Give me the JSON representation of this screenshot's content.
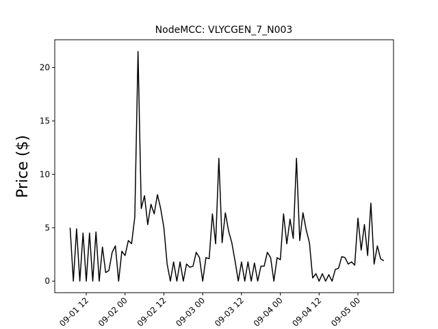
{
  "chart_data": {
    "type": "line",
    "title": "NodeMCC: VLYCGEN_7_N003",
    "y_label": "Price ($)",
    "color": "#000000",
    "grid": false,
    "x": [
      "09-01 07",
      "09-01 08",
      "09-01 09",
      "09-01 10",
      "09-01 11",
      "09-01 12",
      "09-01 13",
      "09-01 14",
      "09-01 15",
      "09-01 16",
      "09-01 17",
      "09-01 18",
      "09-01 19",
      "09-01 20",
      "09-01 21",
      "09-01 22",
      "09-01 23",
      "09-02 00",
      "09-02 01",
      "09-02 02",
      "09-02 03",
      "09-02 04",
      "09-02 05",
      "09-02 06",
      "09-02 07",
      "09-02 08",
      "09-02 09",
      "09-02 10",
      "09-02 11",
      "09-02 12",
      "09-02 13",
      "09-02 14",
      "09-02 15",
      "09-02 16",
      "09-02 17",
      "09-02 18",
      "09-02 19",
      "09-02 20",
      "09-02 21",
      "09-02 22",
      "09-02 23",
      "09-03 00",
      "09-03 01",
      "09-03 02",
      "09-03 03",
      "09-03 04",
      "09-03 05",
      "09-03 06",
      "09-03 07",
      "09-03 08",
      "09-03 09",
      "09-03 10",
      "09-03 11",
      "09-03 12",
      "09-03 13",
      "09-03 14",
      "09-03 15",
      "09-03 16",
      "09-03 17",
      "09-03 18",
      "09-03 19",
      "09-03 20",
      "09-03 21",
      "09-03 22",
      "09-03 23",
      "09-04 00",
      "09-04 01",
      "09-04 02",
      "09-04 03",
      "09-04 04",
      "09-04 05",
      "09-04 06",
      "09-04 07",
      "09-04 08",
      "09-04 09",
      "09-04 10",
      "09-04 11",
      "09-04 12",
      "09-04 13",
      "09-04 14",
      "09-04 15",
      "09-04 16",
      "09-04 17",
      "09-04 18",
      "09-04 19",
      "09-04 20",
      "09-04 21",
      "09-04 22",
      "09-04 23",
      "09-05 00",
      "09-05 01",
      "09-05 02",
      "09-05 03",
      "09-05 04",
      "09-05 05",
      "09-05 06",
      "09-05 07",
      "09-05 08"
    ],
    "values": [
      5.0,
      0,
      4.9,
      0,
      4.5,
      0,
      4.5,
      0,
      4.6,
      0,
      3.2,
      0.8,
      1.0,
      2.7,
      3.3,
      0,
      2.8,
      2.4,
      3.8,
      3.5,
      6.0,
      21.5,
      6.8,
      8.0,
      5.3,
      7.2,
      6.3,
      8.1,
      6.8,
      5.0,
      1.6,
      0,
      1.8,
      0,
      1.8,
      0,
      1.6,
      1.3,
      1.4,
      2.7,
      2.2,
      0,
      2.2,
      2.1,
      6.3,
      3.5,
      11.5,
      3.6,
      6.4,
      4.7,
      3.6,
      1.9,
      0,
      1.8,
      0,
      1.8,
      0,
      1.7,
      0,
      1.4,
      1.4,
      2.7,
      2.2,
      0,
      2.2,
      2.0,
      6.3,
      3.5,
      5.8,
      4.0,
      11.5,
      3.8,
      6.4,
      4.8,
      3.6,
      0.3,
      0.7,
      0,
      0.7,
      0,
      0.6,
      0,
      1.1,
      1.2,
      2.3,
      2.2,
      1.6,
      1.8,
      1.5,
      5.9,
      2.9,
      5.3,
      2.4,
      7.3,
      1.6,
      3.3,
      2.1,
      1.9
    ],
    "xlim": [
      "09-01 02:15",
      "09-05 11:00"
    ],
    "xticks": [
      "09-01 12",
      "09-02 00",
      "09-02 12",
      "09-03 00",
      "09-03 12",
      "09-04 00",
      "09-04 12",
      "09-05 00"
    ],
    "ylim": [
      -1.08,
      22.6
    ],
    "yticks": [
      0,
      5,
      10,
      15,
      20
    ]
  }
}
